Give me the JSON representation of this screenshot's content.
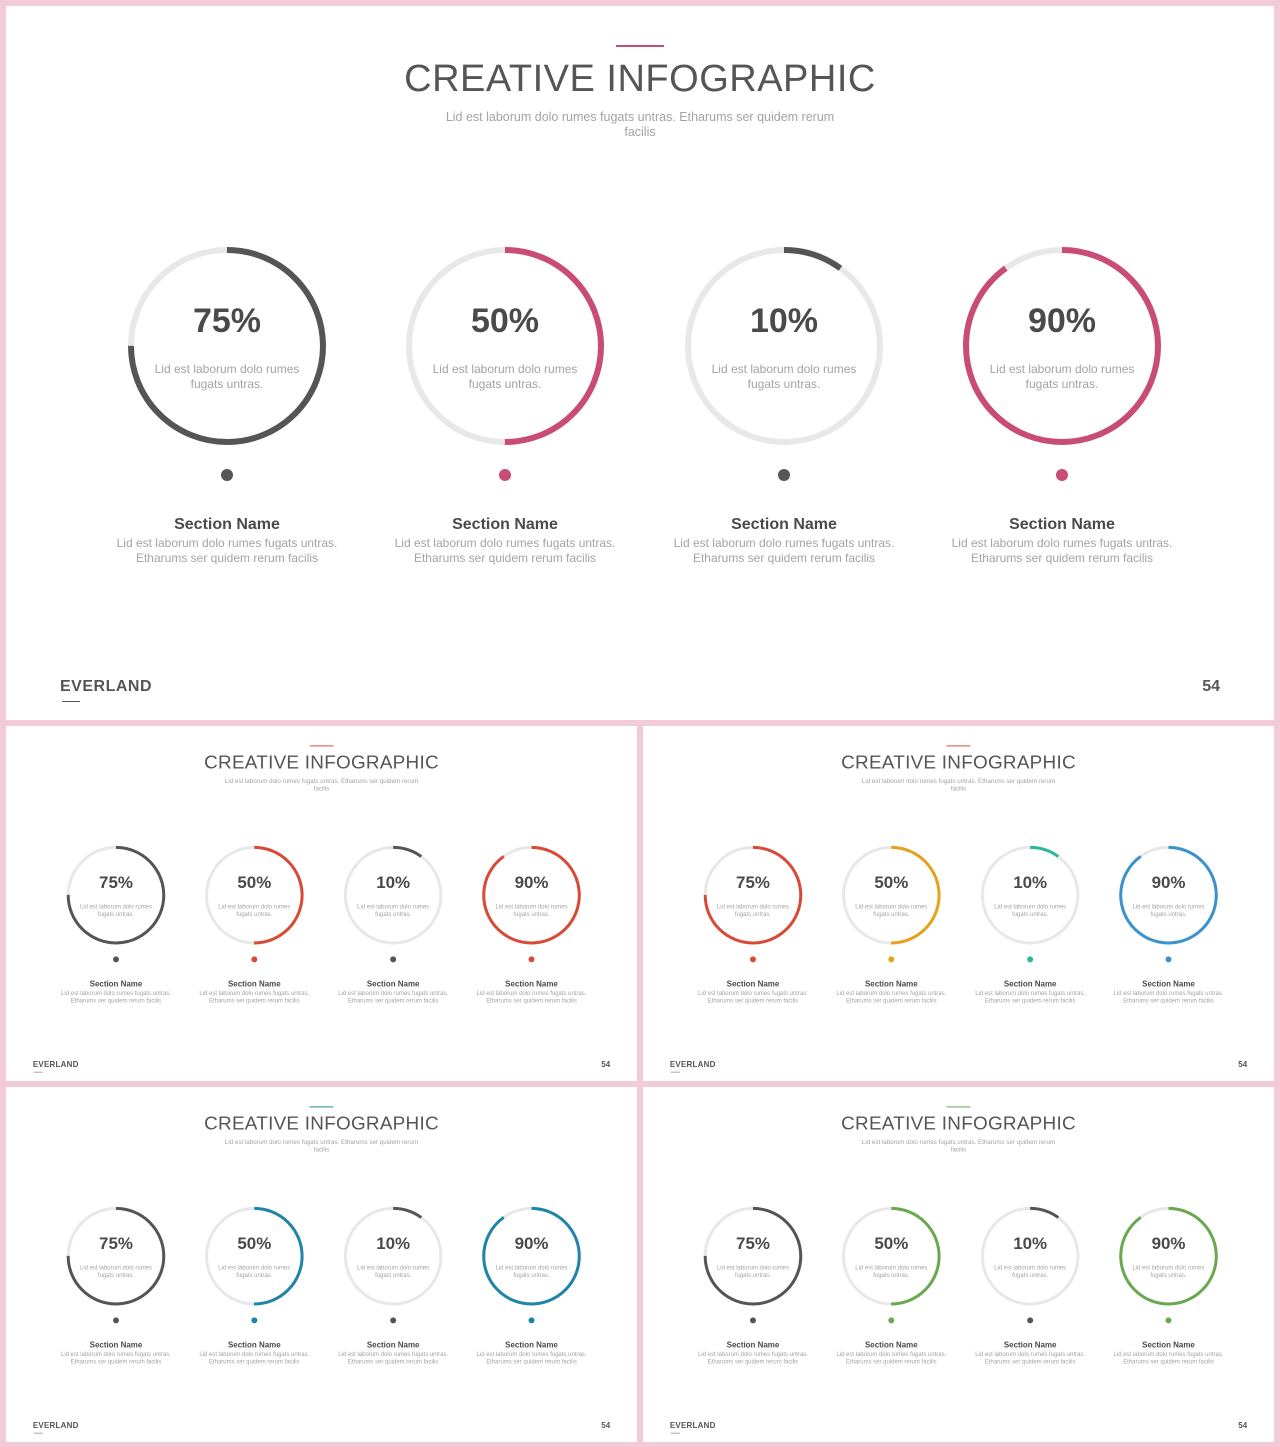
{
  "slides": [
    {
      "title": "CREATIVE INFOGRAPHIC",
      "subtitle": "Lid est laborum dolo rumes fugats untras. Etharums ser quidem rerum facilis",
      "brand": "EVERLAND",
      "page": "54",
      "accent_color": "#c84c75",
      "items": [
        {
          "pct_label": "75%",
          "value": 75,
          "color": "#555555",
          "desc": "Lid est laborum dolo rumes fugats untras.",
          "section": "Section Name",
          "section_desc": "Lid est laborum dolo rumes fugats untras. Etharums ser quidem rerum facilis"
        },
        {
          "pct_label": "50%",
          "value": 50,
          "color": "#c84c75",
          "desc": "Lid est laborum dolo rumes fugats untras.",
          "section": "Section Name",
          "section_desc": "Lid est laborum dolo rumes fugats untras. Etharums ser quidem rerum facilis"
        },
        {
          "pct_label": "10%",
          "value": 10,
          "color": "#555555",
          "desc": "Lid est laborum dolo rumes fugats untras.",
          "section": "Section Name",
          "section_desc": "Lid est laborum dolo rumes fugats untras. Etharums ser quidem rerum facilis"
        },
        {
          "pct_label": "90%",
          "value": 90,
          "color": "#c84c75",
          "desc": "Lid est laborum dolo rumes fugats untras.",
          "section": "Section Name",
          "section_desc": "Lid est laborum dolo rumes fugats untras. Etharums ser quidem rerum facilis"
        }
      ]
    },
    {
      "title": "CREATIVE INFOGRAPHIC",
      "subtitle": "Lid est laborum dolo rumes fugats untras. Etharums ser quidem rerum facilis",
      "brand": "EVERLAND",
      "page": "54",
      "accent_color": "#d94a36",
      "items": [
        {
          "pct_label": "75%",
          "value": 75,
          "color": "#555555",
          "desc": "Lid est laborum dolo rumes fugats untras.",
          "section": "Section Name",
          "section_desc": "Lid est laborum dolo rumes fugats untras. Etharums ser quidem rerum facilis"
        },
        {
          "pct_label": "50%",
          "value": 50,
          "color": "#d94a36",
          "desc": "Lid est laborum dolo rumes fugats untras.",
          "section": "Section Name",
          "section_desc": "Lid est laborum dolo rumes fugats untras. Etharums ser quidem rerum facilis"
        },
        {
          "pct_label": "10%",
          "value": 10,
          "color": "#555555",
          "desc": "Lid est laborum dolo rumes fugats untras.",
          "section": "Section Name",
          "section_desc": "Lid est laborum dolo rumes fugats untras. Etharums ser quidem rerum facilis"
        },
        {
          "pct_label": "90%",
          "value": 90,
          "color": "#d94a36",
          "desc": "Lid est laborum dolo rumes fugats untras.",
          "section": "Section Name",
          "section_desc": "Lid est laborum dolo rumes fugats untras. Etharums ser quidem rerum facilis"
        }
      ]
    },
    {
      "title": "CREATIVE INFOGRAPHIC",
      "subtitle": "Lid est laborum dolo rumes fugats untras. Etharums ser quidem rerum facilis",
      "brand": "EVERLAND",
      "page": "54",
      "accent_color": "#d94a36",
      "items": [
        {
          "pct_label": "75%",
          "value": 75,
          "color": "#d94a36",
          "desc": "Lid est laborum dolo rumes fugats untras.",
          "section": "Section Name",
          "section_desc": "Lid est laborum dolo rumes fugats untras. Etharums ser quidem rerum facilis"
        },
        {
          "pct_label": "50%",
          "value": 50,
          "color": "#e6a11d",
          "desc": "Lid est laborum dolo rumes fugats untras.",
          "section": "Section Name",
          "section_desc": "Lid est laborum dolo rumes fugats untras. Etharums ser quidem rerum facilis"
        },
        {
          "pct_label": "10%",
          "value": 10,
          "color": "#26b99a",
          "desc": "Lid est laborum dolo rumes fugats untras.",
          "section": "Section Name",
          "section_desc": "Lid est laborum dolo rumes fugats untras. Etharums ser quidem rerum facilis"
        },
        {
          "pct_label": "90%",
          "value": 90,
          "color": "#3a91cc",
          "desc": "Lid est laborum dolo rumes fugats untras.",
          "section": "Section Name",
          "section_desc": "Lid est laborum dolo rumes fugats untras. Etharums ser quidem rerum facilis"
        }
      ]
    },
    {
      "title": "CREATIVE INFOGRAPHIC",
      "subtitle": "Lid est laborum dolo rumes fugats untras. Etharums ser quidem rerum facilis",
      "brand": "EVERLAND",
      "page": "54",
      "accent_color": "#1e84a8",
      "items": [
        {
          "pct_label": "75%",
          "value": 75,
          "color": "#555555",
          "desc": "Lid est laborum dolo rumes fugats untras.",
          "section": "Section Name",
          "section_desc": "Lid est laborum dolo rumes fugats untras. Etharums ser quidem rerum facilis"
        },
        {
          "pct_label": "50%",
          "value": 50,
          "color": "#1e84a8",
          "desc": "Lid est laborum dolo rumes fugats untras.",
          "section": "Section Name",
          "section_desc": "Lid est laborum dolo rumes fugats untras. Etharums ser quidem rerum facilis"
        },
        {
          "pct_label": "10%",
          "value": 10,
          "color": "#555555",
          "desc": "Lid est laborum dolo rumes fugats untras.",
          "section": "Section Name",
          "section_desc": "Lid est laborum dolo rumes fugats untras. Etharums ser quidem rerum facilis"
        },
        {
          "pct_label": "90%",
          "value": 90,
          "color": "#1e84a8",
          "desc": "Lid est laborum dolo rumes fugats untras.",
          "section": "Section Name",
          "section_desc": "Lid est laborum dolo rumes fugats untras. Etharums ser quidem rerum facilis"
        }
      ]
    },
    {
      "title": "CREATIVE INFOGRAPHIC",
      "subtitle": "Lid est laborum dolo rumes fugats untras. Etharums ser quidem rerum facilis",
      "brand": "EVERLAND",
      "page": "54",
      "accent_color": "#6aa84f",
      "items": [
        {
          "pct_label": "75%",
          "value": 75,
          "color": "#555555",
          "desc": "Lid est laborum dolo rumes fugats untras.",
          "section": "Section Name",
          "section_desc": "Lid est laborum dolo rumes fugats untras. Etharums ser quidem rerum facilis"
        },
        {
          "pct_label": "50%",
          "value": 50,
          "color": "#6aa84f",
          "desc": "Lid est laborum dolo rumes fugats untras.",
          "section": "Section Name",
          "section_desc": "Lid est laborum dolo rumes fugats untras. Etharums ser quidem rerum facilis"
        },
        {
          "pct_label": "10%",
          "value": 10,
          "color": "#555555",
          "desc": "Lid est laborum dolo rumes fugats untras.",
          "section": "Section Name",
          "section_desc": "Lid est laborum dolo rumes fugats untras. Etharums ser quidem rerum facilis"
        },
        {
          "pct_label": "90%",
          "value": 90,
          "color": "#6aa84f",
          "desc": "Lid est laborum dolo rumes fugats untras.",
          "section": "Section Name",
          "section_desc": "Lid est laborum dolo rumes fugats untras. Etharums ser quidem rerum facilis"
        }
      ]
    }
  ]
}
